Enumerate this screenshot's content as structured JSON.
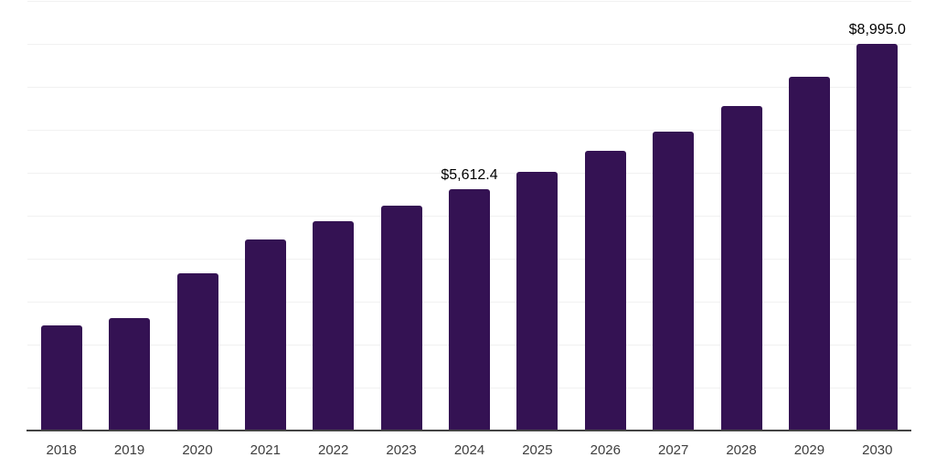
{
  "chart_data": {
    "type": "bar",
    "title": "",
    "xlabel": "",
    "ylabel": "",
    "categories": [
      "2018",
      "2019",
      "2020",
      "2021",
      "2022",
      "2023",
      "2024",
      "2025",
      "2026",
      "2027",
      "2028",
      "2029",
      "2030"
    ],
    "values": [
      2447,
      2617,
      3660,
      4447,
      4872,
      5234,
      5612.4,
      6021,
      6511,
      6957,
      7553,
      8234,
      8995.0
    ],
    "point_labels": [
      "",
      "",
      "",
      "",
      "",
      "",
      "$5,612.4",
      "",
      "",
      "",
      "",
      "",
      "$8,995.0"
    ],
    "ylim": [
      0,
      10000
    ],
    "grid_step": 1000,
    "grid": true,
    "legend": "none",
    "y_tick_labels_visible": false,
    "colors": {
      "bar": "#341253",
      "gridline": "#f1f1f1",
      "axis_line": "#444444",
      "tick_label": "#3e3e3e",
      "value_label": "#000000",
      "background": "#ffffff"
    }
  }
}
